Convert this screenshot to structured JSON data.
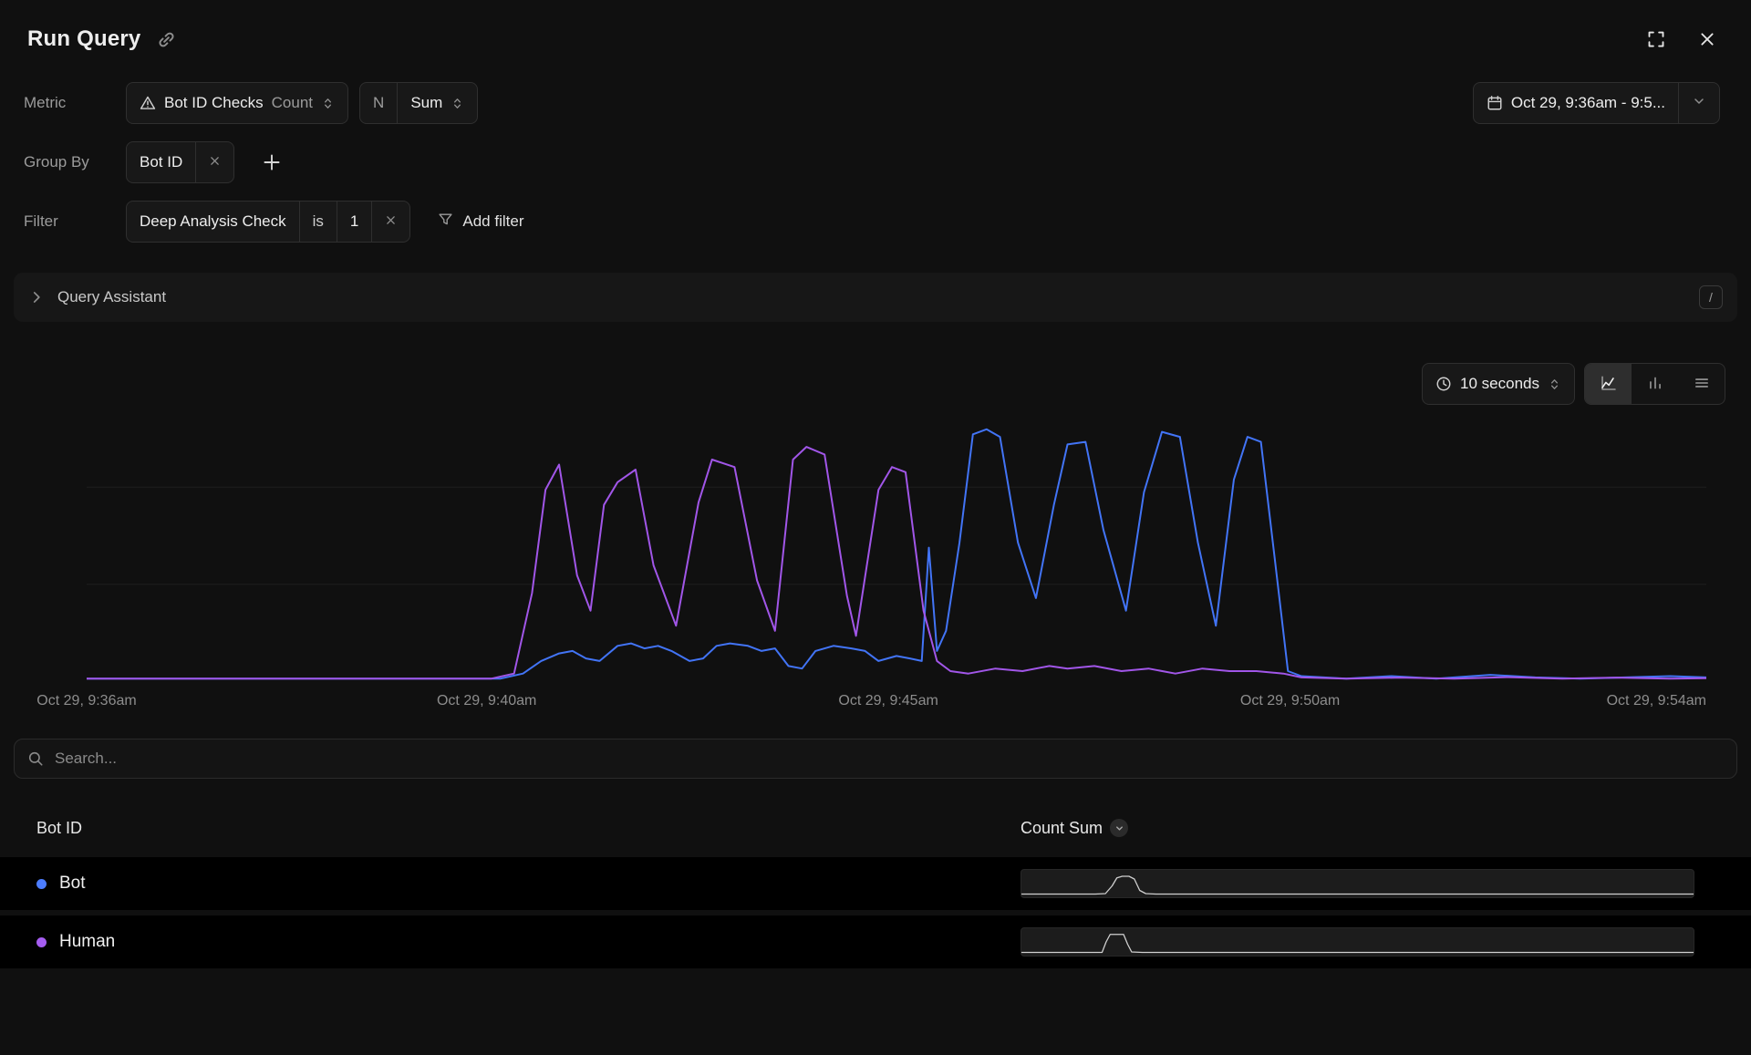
{
  "window": {
    "title": "Run Query"
  },
  "metric_row": {
    "label": "Metric",
    "metric_name": "Bot ID Checks",
    "metric_unit": "Count",
    "agg_letter": "N",
    "agg_value": "Sum"
  },
  "date_range": {
    "value": "Oct 29, 9:36am - 9:5..."
  },
  "group_by": {
    "label": "Group By",
    "chip": "Bot ID"
  },
  "filter_row": {
    "label": "Filter",
    "field": "Deep Analysis Check",
    "operator": "is",
    "value": "1",
    "add_filter": "Add filter"
  },
  "assistant": {
    "label": "Query Assistant",
    "shortcut_key": "/"
  },
  "chart_toolbar": {
    "interval": "10 seconds"
  },
  "chart_data": {
    "type": "line",
    "title": "",
    "x_unit": "minutes since Oct 29, 9:36am",
    "x_range": [
      0,
      18
    ],
    "x_ticks": [
      "Oct 29, 9:36am",
      "Oct 29, 9:40am",
      "Oct 29, 9:45am",
      "Oct 29, 9:50am",
      "Oct 29, 9:54am"
    ],
    "y_range": [
      0,
      105
    ],
    "gridlines": [
      38.5,
      77
    ],
    "legend_position": "table-below",
    "series": [
      {
        "name": "Bot",
        "color": "#4274f6",
        "points": [
          [
            0,
            1
          ],
          [
            1,
            1
          ],
          [
            2,
            1
          ],
          [
            3,
            1
          ],
          [
            4,
            1
          ],
          [
            4.6,
            1
          ],
          [
            4.85,
            3
          ],
          [
            5.05,
            8
          ],
          [
            5.25,
            11
          ],
          [
            5.4,
            12
          ],
          [
            5.55,
            9
          ],
          [
            5.7,
            8
          ],
          [
            5.9,
            14
          ],
          [
            6.05,
            15
          ],
          [
            6.2,
            13
          ],
          [
            6.35,
            14
          ],
          [
            6.5,
            12
          ],
          [
            6.7,
            8
          ],
          [
            6.85,
            9
          ],
          [
            7.0,
            14
          ],
          [
            7.15,
            15
          ],
          [
            7.35,
            14
          ],
          [
            7.5,
            12
          ],
          [
            7.65,
            13
          ],
          [
            7.8,
            6
          ],
          [
            7.95,
            5
          ],
          [
            8.1,
            12
          ],
          [
            8.3,
            14
          ],
          [
            8.5,
            13
          ],
          [
            8.65,
            12
          ],
          [
            8.8,
            8
          ],
          [
            9.0,
            10
          ],
          [
            9.15,
            9
          ],
          [
            9.28,
            8
          ],
          [
            9.36,
            53
          ],
          [
            9.45,
            12
          ],
          [
            9.55,
            20
          ],
          [
            9.7,
            55
          ],
          [
            9.85,
            98
          ],
          [
            10.0,
            100
          ],
          [
            10.15,
            97
          ],
          [
            10.35,
            55
          ],
          [
            10.55,
            33
          ],
          [
            10.75,
            70
          ],
          [
            10.9,
            94
          ],
          [
            11.1,
            95
          ],
          [
            11.3,
            60
          ],
          [
            11.55,
            28
          ],
          [
            11.75,
            75
          ],
          [
            11.95,
            99
          ],
          [
            12.15,
            97
          ],
          [
            12.35,
            55
          ],
          [
            12.55,
            22
          ],
          [
            12.75,
            80
          ],
          [
            12.9,
            97
          ],
          [
            13.05,
            95
          ],
          [
            13.2,
            50
          ],
          [
            13.35,
            4
          ],
          [
            13.5,
            2
          ],
          [
            14,
            1
          ],
          [
            14.5,
            2
          ],
          [
            15,
            1
          ],
          [
            15.6,
            2.5
          ],
          [
            16.1,
            1.5
          ],
          [
            16.6,
            1
          ],
          [
            17.1,
            1.5
          ],
          [
            17.6,
            2
          ],
          [
            18,
            1.5
          ]
        ]
      },
      {
        "name": "Human",
        "color": "#a156e8",
        "points": [
          [
            0,
            1
          ],
          [
            1,
            1
          ],
          [
            2,
            1
          ],
          [
            3,
            1
          ],
          [
            4,
            1
          ],
          [
            4.5,
            1
          ],
          [
            4.75,
            3
          ],
          [
            4.95,
            35
          ],
          [
            5.1,
            76
          ],
          [
            5.25,
            86
          ],
          [
            5.45,
            42
          ],
          [
            5.6,
            28
          ],
          [
            5.75,
            70
          ],
          [
            5.9,
            79
          ],
          [
            6.1,
            84
          ],
          [
            6.3,
            46
          ],
          [
            6.55,
            22
          ],
          [
            6.8,
            71
          ],
          [
            6.95,
            88
          ],
          [
            7.2,
            85
          ],
          [
            7.45,
            40
          ],
          [
            7.65,
            20
          ],
          [
            7.85,
            88
          ],
          [
            8.0,
            93
          ],
          [
            8.2,
            90
          ],
          [
            8.45,
            34
          ],
          [
            8.55,
            18
          ],
          [
            8.8,
            76
          ],
          [
            8.95,
            85
          ],
          [
            9.1,
            83
          ],
          [
            9.3,
            28
          ],
          [
            9.45,
            8
          ],
          [
            9.6,
            4
          ],
          [
            9.8,
            3
          ],
          [
            10.1,
            5
          ],
          [
            10.4,
            4
          ],
          [
            10.7,
            6
          ],
          [
            10.9,
            5
          ],
          [
            11.2,
            6
          ],
          [
            11.5,
            4
          ],
          [
            11.8,
            5
          ],
          [
            12.1,
            3
          ],
          [
            12.4,
            5
          ],
          [
            12.7,
            4
          ],
          [
            13.0,
            4
          ],
          [
            13.3,
            3
          ],
          [
            13.5,
            1.5
          ],
          [
            14,
            1
          ],
          [
            14.6,
            1.4
          ],
          [
            15.2,
            1
          ],
          [
            15.8,
            1.6
          ],
          [
            16.4,
            1
          ],
          [
            17,
            1.4
          ],
          [
            17.6,
            1
          ],
          [
            18,
            1.2
          ]
        ]
      }
    ]
  },
  "search": {
    "placeholder": "Search..."
  },
  "table": {
    "columns": [
      {
        "label": "Bot ID"
      },
      {
        "label": "Count Sum"
      }
    ],
    "rows": [
      {
        "label": "Bot",
        "dot_color": "#4c7dff",
        "spark": [
          [
            0,
            0.4
          ],
          [
            11,
            0.4
          ],
          [
            12.5,
            0.6
          ],
          [
            13.5,
            4
          ],
          [
            14.2,
            7.5
          ],
          [
            15,
            8.2
          ],
          [
            16,
            8.2
          ],
          [
            16.8,
            7
          ],
          [
            17.6,
            2
          ],
          [
            18.5,
            0.6
          ],
          [
            20,
            0.4
          ],
          [
            100,
            0.4
          ]
        ]
      },
      {
        "label": "Human",
        "dot_color": "#a55df0",
        "spark": [
          [
            0,
            0.4
          ],
          [
            12,
            0.4
          ],
          [
            12.6,
            5
          ],
          [
            13.2,
            8.3
          ],
          [
            15.2,
            8.3
          ],
          [
            15.8,
            4
          ],
          [
            16.4,
            0.6
          ],
          [
            18,
            0.4
          ],
          [
            100,
            0.4
          ]
        ]
      }
    ]
  }
}
